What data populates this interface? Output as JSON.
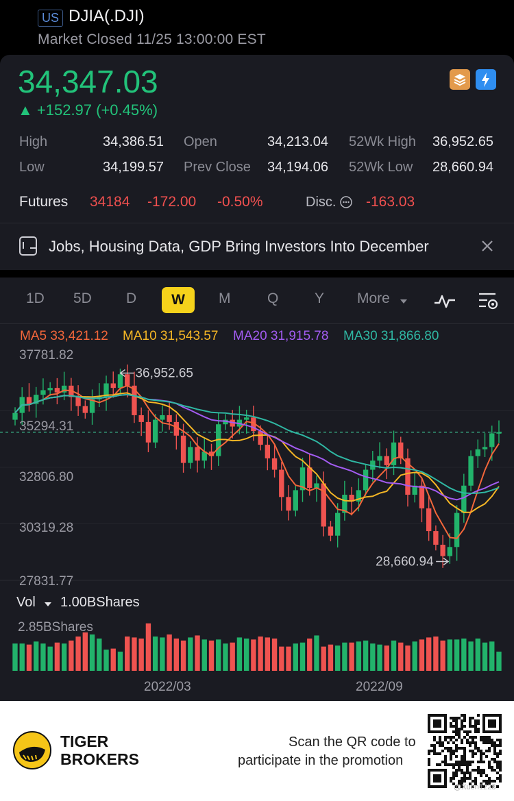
{
  "header": {
    "market_badge": "US",
    "symbol": "DJIA(.DJI)",
    "status": "Market Closed 11/25 13:00:00 EST"
  },
  "quote": {
    "price": "34,347.03",
    "change": "▲ +152.97 (+0.45%)",
    "rows": [
      [
        {
          "l": "High",
          "v": "34,386.51"
        },
        {
          "l": "Open",
          "v": "34,213.04"
        },
        {
          "l": "52Wk High",
          "v": "36,952.65"
        }
      ],
      [
        {
          "l": "Low",
          "v": "34,199.57"
        },
        {
          "l": "Prev Close",
          "v": "34,194.06"
        },
        {
          "l": "52Wk Low",
          "v": "28,660.94"
        }
      ]
    ],
    "futures": {
      "label": "Futures",
      "price": "34184",
      "change": "-172.00",
      "percent": "-0.50%",
      "disc_label": "Disc.",
      "disc_value": "-163.03"
    }
  },
  "news": {
    "headline": "Jobs, Housing Data, GDP Bring Investors Into December"
  },
  "tabs": [
    "1D",
    "5D",
    "D",
    "W",
    "M",
    "Q",
    "Y",
    "More"
  ],
  "active_tab": "W",
  "ma": [
    {
      "label": "MA5 33,421.12",
      "color": "#f3663a"
    },
    {
      "label": "MA10 31,543.57",
      "color": "#f5b625"
    },
    {
      "label": "MA20 31,915.78",
      "color": "#a35cf2"
    },
    {
      "label": "MA30 31,866.80",
      "color": "#2fb7a3"
    }
  ],
  "chart_data": {
    "type": "candlestick",
    "y_ticks": [
      "37781.82",
      "35294.31",
      "32806.80",
      "30319.28",
      "27831.77"
    ],
    "ylim": [
      27831.77,
      37781.82
    ],
    "x_ticks": [
      "2022/03",
      "2022/09"
    ],
    "high_label": "36,952.65",
    "low_label": "28,660.94",
    "volume_label": "Vol",
    "volume_unit": "1.00BShares",
    "volume_max_label": "2.85BShares",
    "closes": [
      35200,
      35900,
      35600,
      36000,
      36200,
      36300,
      36100,
      36400,
      35900,
      35500,
      35200,
      35800,
      35900,
      36500,
      36300,
      36900,
      36400,
      35100,
      34800,
      33900,
      34900,
      35100,
      34800,
      34200,
      33000,
      33700,
      33100,
      33500,
      33300,
      34700,
      34900,
      34600,
      34900,
      35000,
      34400,
      33800,
      33200,
      32700,
      31500,
      30900,
      31800,
      32800,
      31900,
      32100,
      30200,
      29800,
      30800,
      31600,
      31300,
      31800,
      32700,
      33100,
      33300,
      32900,
      33900,
      33200,
      31600,
      32000,
      31000,
      30000,
      29400,
      28900,
      29300,
      30800,
      32000,
      33300,
      33600,
      33700,
      34300,
      34350
    ],
    "volumes": [
      1.35,
      1.35,
      1.3,
      1.45,
      1.35,
      1.2,
      1.4,
      1.35,
      1.5,
      1.7,
      1.9,
      1.8,
      1.6,
      1.05,
      1.1,
      0.95,
      1.7,
      1.65,
      1.6,
      2.35,
      1.7,
      1.65,
      1.8,
      1.6,
      1.5,
      1.65,
      1.75,
      1.55,
      1.5,
      1.55,
      1.35,
      1.4,
      1.65,
      1.6,
      1.55,
      1.7,
      1.65,
      1.6,
      1.2,
      1.2,
      1.35,
      1.4,
      1.6,
      1.75,
      1.2,
      1.3,
      1.25,
      1.4,
      1.4,
      1.45,
      1.5,
      1.35,
      1.3,
      1.25,
      1.5,
      1.4,
      1.25,
      1.45,
      1.55,
      1.65,
      1.7,
      1.5,
      1.55,
      1.55,
      1.6,
      1.45,
      1.6,
      1.4,
      1.45,
      0.95
    ]
  },
  "footer": {
    "brand_line1": "TIGER",
    "brand_line2": "BROKERS",
    "promo_line1": "Scan the QR code to",
    "promo_line2": "participate in the promotion",
    "watermark": "@Xuen1228"
  }
}
